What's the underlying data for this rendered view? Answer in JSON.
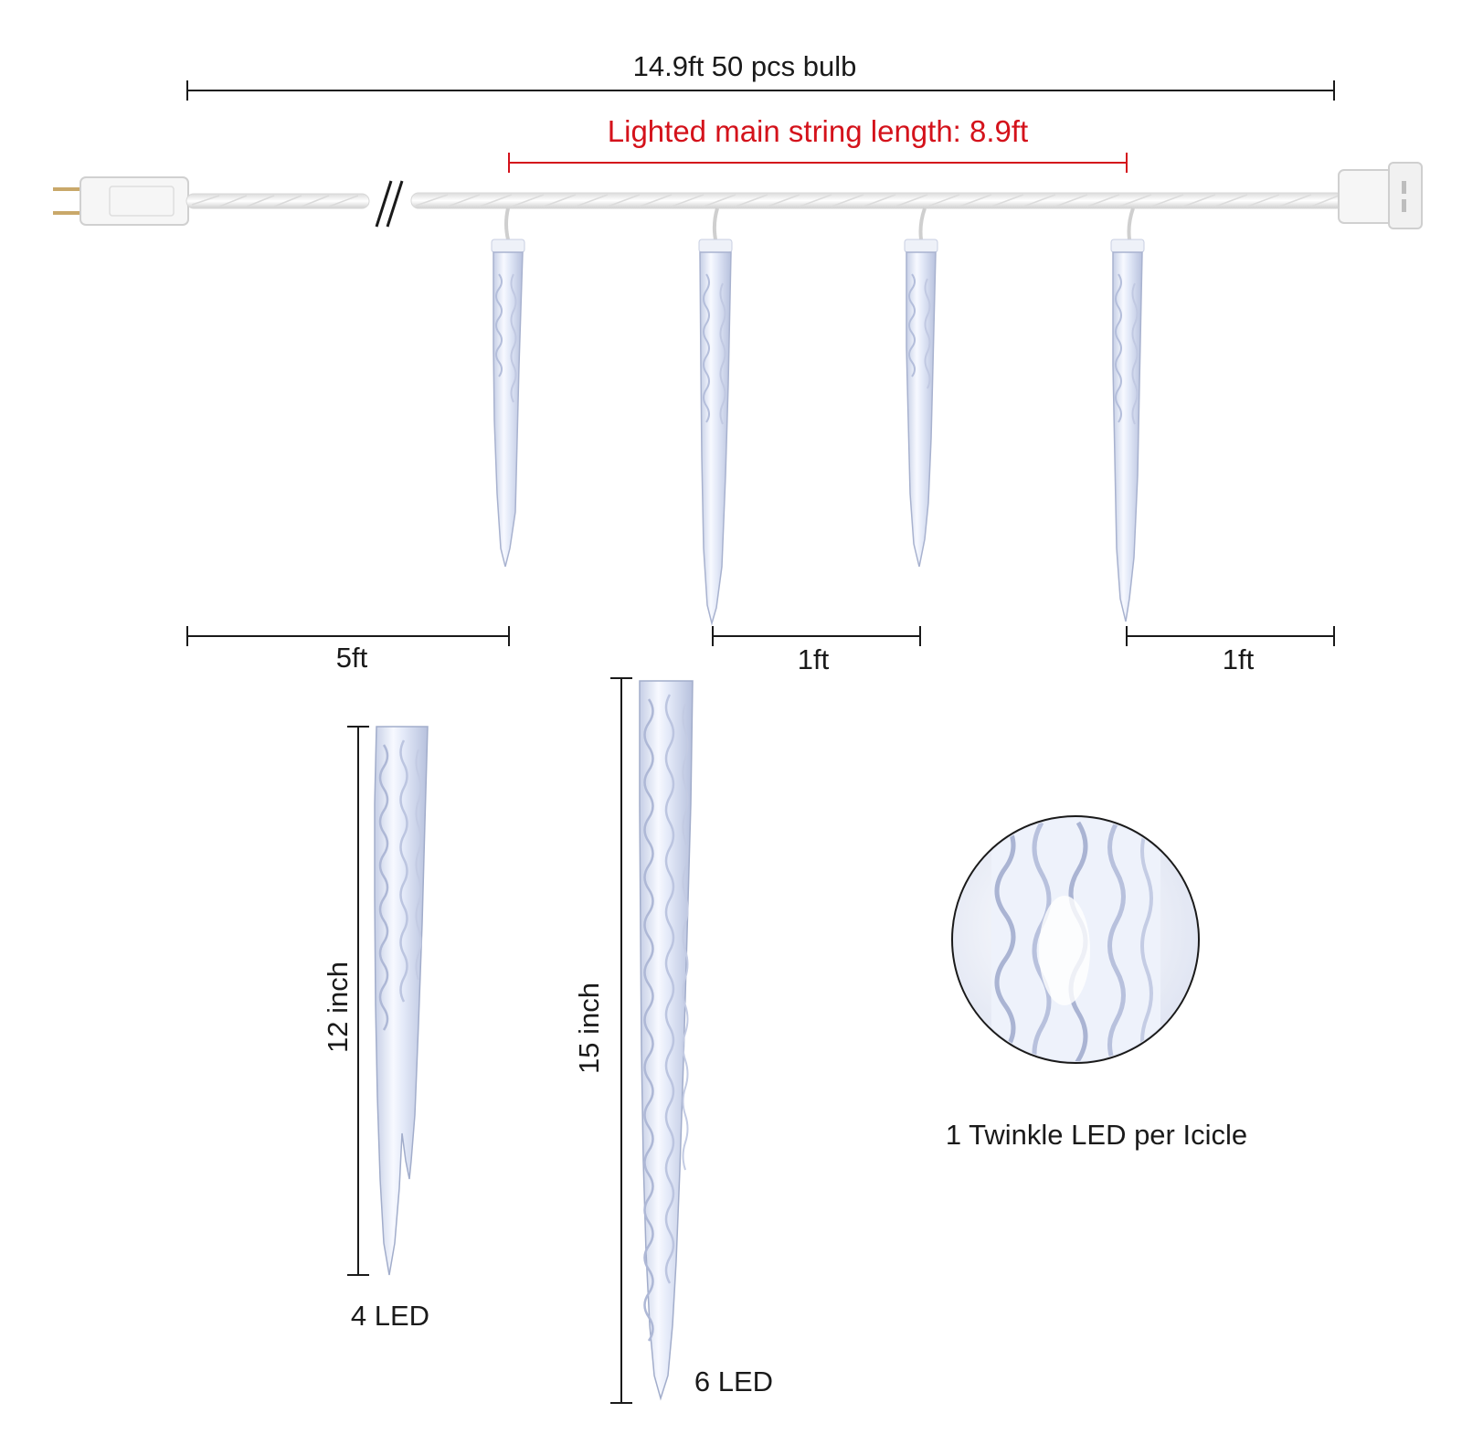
{
  "dimensions": {
    "total_length": "14.9ft  50 pcs bulb",
    "lighted_length": "Lighted main string length: 8.9ft",
    "lead_length": "5ft",
    "spacing_1": "1ft",
    "spacing_2": "1ft"
  },
  "icicles": {
    "small": {
      "height_label": "12 inch",
      "led_label": "4 LED"
    },
    "large": {
      "height_label": "15 inch",
      "led_label": "6  LED"
    }
  },
  "detail": {
    "caption": "1 Twinkle LED per Icicle"
  },
  "colors": {
    "accent_red": "#d4121b",
    "wire": "#f4f4f4",
    "icicle_glow": "#dfe6f7",
    "icicle_edge": "#9aa6c8",
    "dimension_lines": "#1a1a1a"
  }
}
